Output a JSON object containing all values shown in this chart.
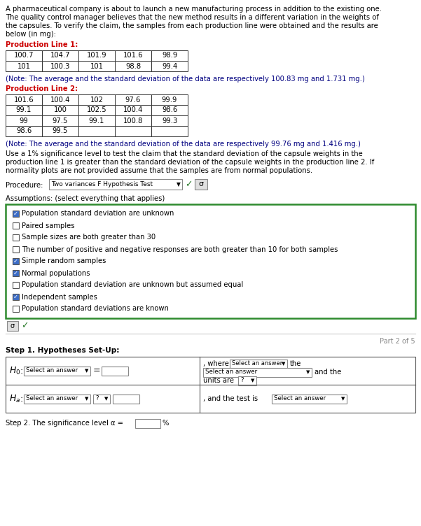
{
  "intro_text": "A pharmaceutical company is about to launch a new manufacturing process in addition to the existing one.\nThe quality control manager believes that the new method results in a different variation in the weights of\nthe capsules. To verify the claim, the samples from each production line were obtained and the results are\nbelow (in mg):",
  "line1_label": "Production Line 1:",
  "line1_row1": [
    "100.7",
    "104.7",
    "101.9",
    "101.6",
    "98.9"
  ],
  "line1_row2": [
    "101",
    "100.3",
    "101",
    "98.8",
    "99.4"
  ],
  "line1_note": "(Note: The average and the standard deviation of the data are respectively 100.83 mg and 1.731 mg.)",
  "line2_label": "Production Line 2:",
  "line2_row1": [
    "101.6",
    "100.4",
    "102",
    "97.6",
    "99.9"
  ],
  "line2_row2": [
    "99.1",
    "100",
    "102.5",
    "100.4",
    "98.6"
  ],
  "line2_row3": [
    "99",
    "97.5",
    "99.1",
    "100.8",
    "99.3"
  ],
  "line2_row4": [
    "98.6",
    "99.5",
    "",
    "",
    ""
  ],
  "line2_note": "(Note: The average and the standard deviation of the data are respectively 99.76 mg and 1.416 mg.)",
  "claim_text": "Use a 1% significance level to test the claim that the standard deviation of the capsule weights in the\nproduction line 1 is greater than the standard deviation of the capsule weights in the production line 2. If\nnormality plots are not provided assume that the samples are from normal populations.",
  "procedure_label": "Procedure:",
  "procedure_value": "Two variances F Hypothesis Test",
  "assumptions_label": "Assumptions: (select everything that applies)",
  "assumptions": [
    {
      "text": "Population standard deviation are unknown",
      "checked": true
    },
    {
      "text": "Paired samples",
      "checked": false
    },
    {
      "text": "Sample sizes are both greater than 30",
      "checked": false
    },
    {
      "text": "The number of positive and negative responses are both greater than 10 for both samples",
      "checked": false
    },
    {
      "text": "Simple random samples",
      "checked": true
    },
    {
      "text": "Normal populations",
      "checked": true
    },
    {
      "text": "Population standard deviation are unknown but assumed equal",
      "checked": false
    },
    {
      "text": "Independent samples",
      "checked": true
    },
    {
      "text": "Population standard deviations are known",
      "checked": false
    }
  ],
  "step1_label": "Step 1. Hypotheses Set-Up:",
  "step2_label": "Step 2. The significance level α =",
  "part_label": "Part 2 of 5",
  "bg_color": "#ffffff",
  "text_color": "#000000",
  "green_color": "#2e7d2e",
  "label_color": "#cc0000",
  "box_border_color": "#2e8b2e",
  "dropdown_border": "#888888",
  "note_color": "#000080"
}
